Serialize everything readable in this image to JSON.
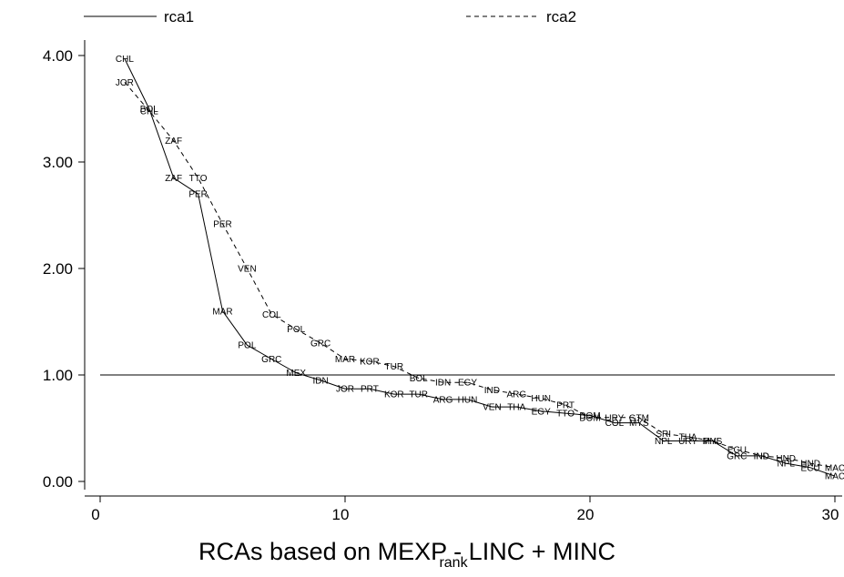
{
  "chart_data": {
    "type": "line",
    "title": "RCAs based on MEXP - LINC + MINC",
    "xlabel": "rank",
    "ylabel": "",
    "xlim": [
      0,
      30
    ],
    "ylim": [
      0,
      4
    ],
    "xticks": [
      0,
      10,
      20,
      30
    ],
    "xtick_labels": [
      "0",
      "10",
      "20",
      "30"
    ],
    "yticks": [
      0,
      1,
      2,
      3,
      4
    ],
    "ytick_labels": [
      "0.00",
      "1.00",
      "2.00",
      "3.00",
      "4.00"
    ],
    "reference_line": {
      "y": 1.0,
      "x_from": 0,
      "x_to": 30
    },
    "legend_position": "top",
    "series": [
      {
        "name": "rca1",
        "style": "solid",
        "x": [
          1,
          2,
          3,
          4,
          5,
          6,
          7,
          8,
          9,
          10,
          11,
          12,
          13,
          14,
          15,
          16,
          17,
          18,
          19,
          20,
          21,
          22,
          23,
          24,
          25,
          26,
          27,
          28,
          29,
          30
        ],
        "y": [
          3.97,
          3.5,
          2.85,
          2.7,
          1.6,
          1.28,
          1.15,
          1.02,
          0.95,
          0.87,
          0.87,
          0.82,
          0.82,
          0.77,
          0.77,
          0.7,
          0.7,
          0.66,
          0.64,
          0.62,
          0.55,
          0.55,
          0.38,
          0.38,
          0.38,
          0.24,
          0.24,
          0.17,
          0.13,
          0.05
        ],
        "labels": [
          "CHL",
          "BOL",
          "ZAF",
          "PER",
          "MAR",
          "POL",
          "GRC",
          "MEX",
          "IDN",
          "JOR",
          "PRT",
          "KOR",
          "TUR",
          "ARG",
          "HUN",
          "VEN",
          "THA",
          "EGY",
          "TTO",
          "DOM",
          "COL",
          "MYS",
          "NPL",
          "URY",
          "PHL",
          "GRC",
          "IND",
          "NPL",
          "ECU",
          "MAC"
        ]
      },
      {
        "name": "rca2",
        "style": "dashed",
        "x": [
          1,
          2,
          3,
          4,
          5,
          6,
          7,
          8,
          9,
          10,
          11,
          12,
          13,
          14,
          15,
          16,
          17,
          18,
          19,
          20,
          21,
          22,
          23,
          24,
          25,
          26,
          27,
          28,
          29,
          30
        ],
        "y": [
          3.75,
          3.48,
          3.2,
          2.85,
          2.42,
          2.0,
          1.57,
          1.43,
          1.3,
          1.15,
          1.13,
          1.08,
          0.97,
          0.93,
          0.93,
          0.86,
          0.82,
          0.78,
          0.72,
          0.6,
          0.6,
          0.6,
          0.45,
          0.42,
          0.38,
          0.3,
          0.24,
          0.22,
          0.17,
          0.13
        ],
        "labels": [
          "JOR",
          "CHL",
          "ZAF",
          "TTO",
          "PER",
          "VEN",
          "COL",
          "POL",
          "GRC",
          "MAR",
          "KOR",
          "TUR",
          "BOL",
          "IDN",
          "EGY",
          "IND",
          "ARG",
          "HUN",
          "PRT",
          "DOM",
          "URY",
          "GTM",
          "SRI",
          "THA",
          "MYS",
          "ECU",
          "IND",
          "HND",
          "HND",
          "MAC"
        ]
      }
    ]
  }
}
